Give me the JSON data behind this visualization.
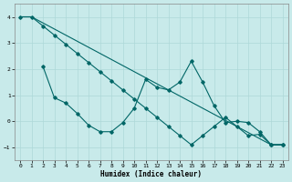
{
  "title": "",
  "xlabel": "Humidex (Indice chaleur)",
  "bg_color": "#c8eaea",
  "grid_color": "#add8d8",
  "line_color": "#006666",
  "xlim": [
    -0.5,
    23.5
  ],
  "ylim": [
    -1.5,
    4.5
  ],
  "yticks": [
    -1,
    0,
    1,
    2,
    3,
    4
  ],
  "xticks": [
    0,
    1,
    2,
    3,
    4,
    5,
    6,
    7,
    8,
    9,
    10,
    11,
    12,
    13,
    14,
    15,
    16,
    17,
    18,
    19,
    20,
    21,
    22,
    23
  ],
  "line1_x": [
    0,
    1,
    2,
    3,
    4,
    5,
    6,
    7,
    8,
    9,
    10,
    11,
    12,
    13,
    14,
    15,
    16,
    17,
    18,
    19,
    20,
    21,
    22,
    23
  ],
  "line1_y": [
    4.0,
    4.0,
    3.65,
    3.3,
    2.95,
    2.6,
    2.25,
    1.9,
    1.55,
    1.2,
    0.85,
    0.5,
    0.15,
    -0.2,
    -0.55,
    -0.9,
    -0.55,
    -0.2,
    0.15,
    -0.2,
    -0.55,
    -0.5,
    -0.9,
    -0.9
  ],
  "line2_x": [
    2,
    3,
    4,
    5,
    6,
    7,
    8,
    9,
    10,
    11,
    12,
    13,
    14,
    15,
    16,
    17,
    18,
    19,
    20,
    21,
    22,
    23
  ],
  "line2_y": [
    2.1,
    0.9,
    0.7,
    0.3,
    -0.15,
    -0.4,
    -0.4,
    -0.05,
    0.5,
    1.6,
    1.3,
    1.2,
    1.5,
    2.3,
    1.5,
    0.6,
    -0.05,
    0.0,
    -0.05,
    -0.4,
    -0.9,
    -0.9
  ],
  "line3_x": [
    0,
    1,
    22,
    23
  ],
  "line3_y": [
    4.0,
    4.0,
    -0.9,
    -0.9
  ]
}
